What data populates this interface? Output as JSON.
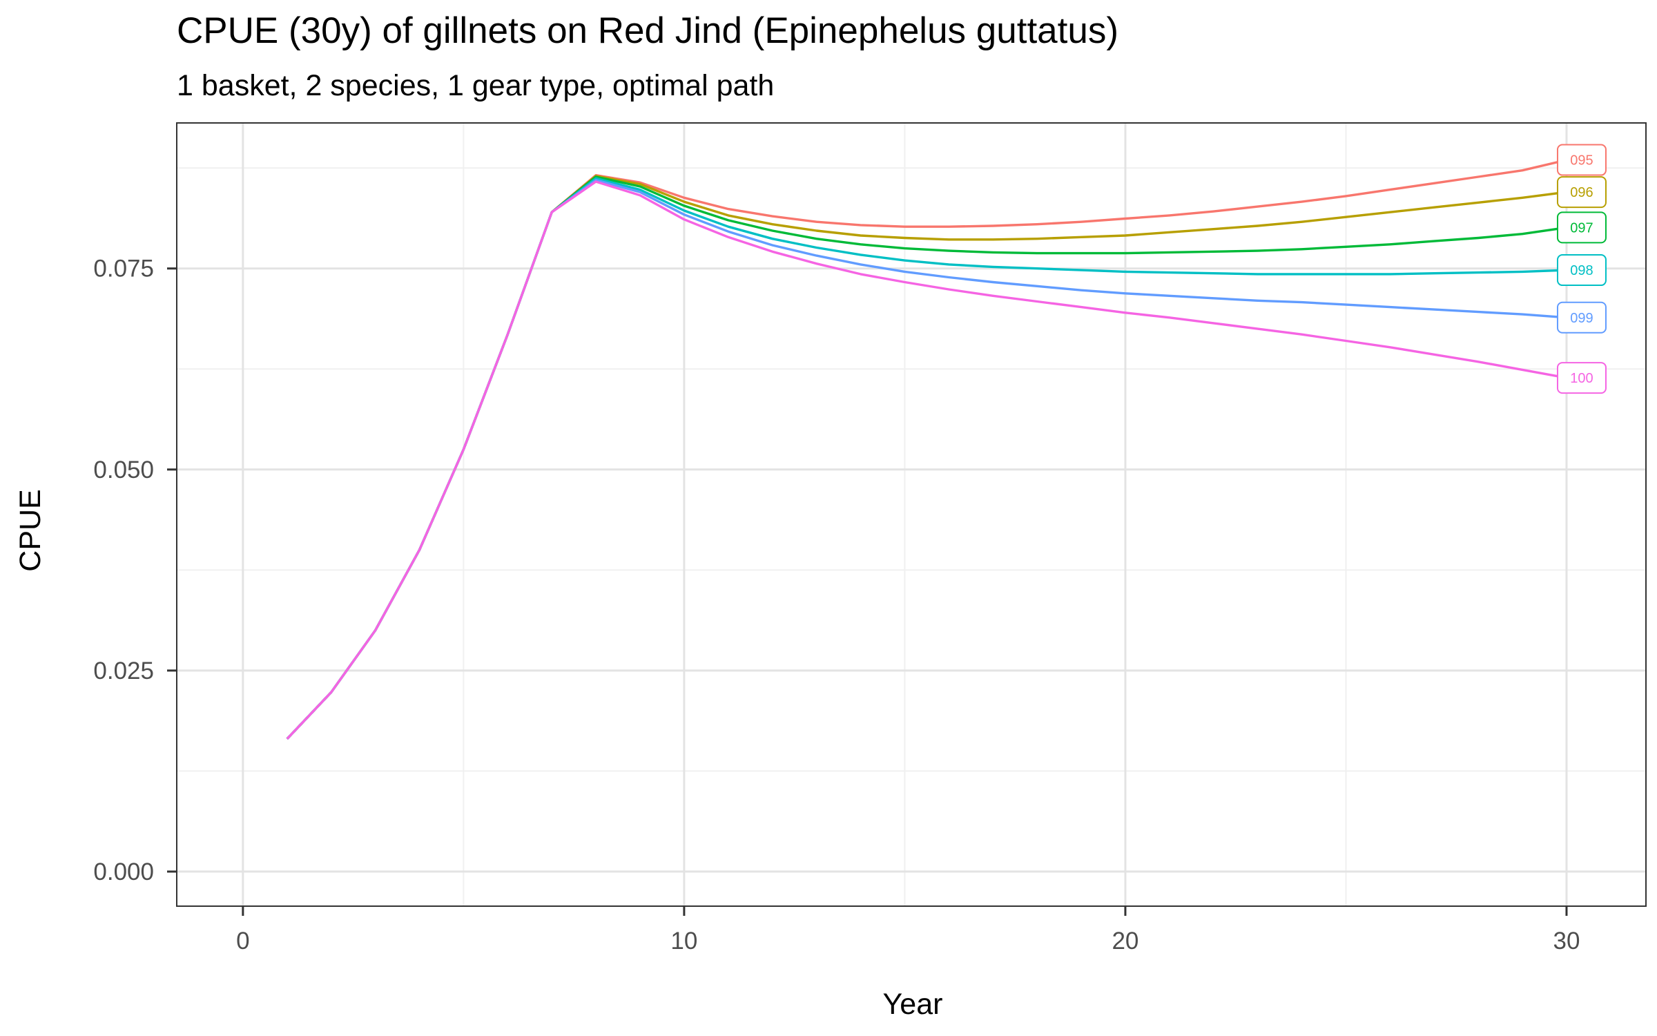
{
  "title": "CPUE (30y) of gillnets on Red Jind (Epinephelus guttatus)",
  "subtitle": "1 basket, 2 species, 1 gear type, optimal path",
  "chart_data": {
    "type": "line",
    "title": "CPUE (30y) of gillnets on Red Jind (Epinephelus guttatus)",
    "subtitle": "1 basket, 2 species, 1 gear type, optimal path",
    "xlabel": "Year",
    "ylabel": "CPUE",
    "xlim": [
      -1.5,
      31.8
    ],
    "ylim": [
      -0.0043,
      0.0931
    ],
    "x_ticks": [
      0,
      10,
      20,
      30
    ],
    "x_tick_labels": [
      "0",
      "10",
      "20",
      "30"
    ],
    "y_ticks": [
      0.0,
      0.025,
      0.05,
      0.075
    ],
    "y_tick_labels": [
      "0.000",
      "0.025",
      "0.050",
      "0.075"
    ],
    "grid": true,
    "legend": "direct labels at right end of each line",
    "x": [
      1,
      2,
      3,
      4,
      5,
      6,
      7,
      8,
      9,
      10,
      11,
      12,
      13,
      14,
      15,
      16,
      17,
      18,
      19,
      20,
      21,
      22,
      23,
      24,
      25,
      26,
      27,
      28,
      29,
      30
    ],
    "series": [
      {
        "name": "095",
        "color": "#F8766D",
        "values": [
          0.0165,
          0.0223,
          0.03,
          0.04,
          0.0525,
          0.0668,
          0.082,
          0.0866,
          0.0857,
          0.0838,
          0.0824,
          0.0815,
          0.0808,
          0.0804,
          0.0802,
          0.0802,
          0.0803,
          0.0805,
          0.0808,
          0.0812,
          0.0816,
          0.0821,
          0.0827,
          0.0833,
          0.084,
          0.0848,
          0.0856,
          0.0864,
          0.0872,
          0.0885
        ]
      },
      {
        "name": "096",
        "color": "#B79F00",
        "values": [
          0.0165,
          0.0223,
          0.03,
          0.04,
          0.0525,
          0.0668,
          0.082,
          0.0865,
          0.0855,
          0.0833,
          0.0816,
          0.0805,
          0.0797,
          0.0791,
          0.0788,
          0.0786,
          0.0786,
          0.0787,
          0.0789,
          0.0791,
          0.0795,
          0.0799,
          0.0803,
          0.0808,
          0.0814,
          0.082,
          0.0826,
          0.0832,
          0.0838,
          0.0845
        ]
      },
      {
        "name": "097",
        "color": "#00BA38",
        "values": [
          0.0165,
          0.0223,
          0.03,
          0.04,
          0.0525,
          0.0668,
          0.082,
          0.0864,
          0.0852,
          0.0828,
          0.081,
          0.0797,
          0.0787,
          0.078,
          0.0775,
          0.0772,
          0.077,
          0.0769,
          0.0769,
          0.0769,
          0.077,
          0.0771,
          0.0772,
          0.0774,
          0.0777,
          0.078,
          0.0784,
          0.0788,
          0.0793,
          0.0801
        ]
      },
      {
        "name": "098",
        "color": "#00BFC4",
        "values": [
          0.0165,
          0.0223,
          0.03,
          0.04,
          0.0525,
          0.0668,
          0.082,
          0.0862,
          0.0848,
          0.0822,
          0.0802,
          0.0787,
          0.0776,
          0.0767,
          0.076,
          0.0755,
          0.0752,
          0.075,
          0.0748,
          0.0746,
          0.0745,
          0.0744,
          0.0743,
          0.0743,
          0.0743,
          0.0743,
          0.0744,
          0.0745,
          0.0746,
          0.0748
        ]
      },
      {
        "name": "099",
        "color": "#619CFF",
        "values": [
          0.0165,
          0.0223,
          0.03,
          0.04,
          0.0525,
          0.0668,
          0.082,
          0.086,
          0.0845,
          0.0817,
          0.0796,
          0.0779,
          0.0766,
          0.0755,
          0.0746,
          0.0739,
          0.0733,
          0.0728,
          0.0723,
          0.0719,
          0.0716,
          0.0713,
          0.071,
          0.0708,
          0.0705,
          0.0702,
          0.0699,
          0.0696,
          0.0693,
          0.0689
        ]
      },
      {
        "name": "100",
        "color": "#F564E3",
        "values": [
          0.0165,
          0.0223,
          0.03,
          0.04,
          0.0525,
          0.0668,
          0.082,
          0.0858,
          0.0841,
          0.0811,
          0.0789,
          0.0771,
          0.0756,
          0.0743,
          0.0733,
          0.0724,
          0.0716,
          0.0709,
          0.0702,
          0.0695,
          0.0689,
          0.0682,
          0.0675,
          0.0668,
          0.066,
          0.0652,
          0.0643,
          0.0634,
          0.0624,
          0.0614
        ]
      }
    ]
  }
}
